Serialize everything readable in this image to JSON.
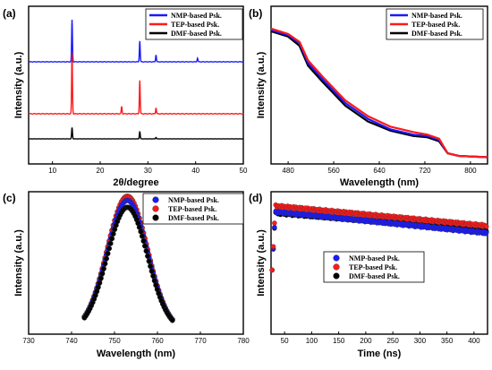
{
  "colors": {
    "nmp": "#1a1aff",
    "tep": "#ff1a1a",
    "dmf": "#000000"
  },
  "chart_data": [
    {
      "id": "a",
      "type": "line",
      "panel_label": "(a)",
      "xlabel": "2θ/degree",
      "ylabel": "Intensity (a.u.)",
      "xlim": [
        5,
        50
      ],
      "xticks": [
        10,
        20,
        30,
        40,
        50
      ],
      "legend": "top-right",
      "series": [
        {
          "name": "NMP-based Psk.",
          "peaks": [
            [
              14.1,
              0.9
            ],
            [
              28.3,
              0.45
            ],
            [
              31.7,
              0.15
            ],
            [
              40.4,
              0.08
            ]
          ]
        },
        {
          "name": "TEP-based Psk.",
          "peaks": [
            [
              14.1,
              1.0
            ],
            [
              28.3,
              0.55
            ],
            [
              24.5,
              0.12
            ],
            [
              31.7,
              0.1
            ]
          ]
        },
        {
          "name": "DMF-based Psk.",
          "peaks": [
            [
              14.1,
              0.45
            ],
            [
              28.3,
              0.3
            ],
            [
              31.7,
              0.06
            ]
          ]
        }
      ]
    },
    {
      "id": "b",
      "type": "line",
      "panel_label": "(b)",
      "xlabel": "Wavelength (nm)",
      "ylabel": "Intensity (a.u.)",
      "xlim": [
        450,
        830
      ],
      "xticks": [
        480,
        560,
        640,
        720,
        800
      ],
      "legend": "top-right",
      "series": [
        {
          "name": "NMP-based Psk.",
          "x": [
            450,
            480,
            500,
            515,
            540,
            580,
            620,
            660,
            700,
            725,
            745,
            760,
            780,
            830
          ],
          "y": [
            0.97,
            0.93,
            0.87,
            0.72,
            0.6,
            0.42,
            0.3,
            0.22,
            0.18,
            0.17,
            0.14,
            0.04,
            0.02,
            0.01
          ]
        },
        {
          "name": "TEP-based Psk.",
          "x": [
            450,
            480,
            500,
            515,
            540,
            580,
            620,
            660,
            700,
            725,
            745,
            760,
            780,
            830
          ],
          "y": [
            0.98,
            0.94,
            0.88,
            0.74,
            0.62,
            0.44,
            0.32,
            0.24,
            0.2,
            0.18,
            0.15,
            0.04,
            0.02,
            0.01
          ]
        },
        {
          "name": "DMF-based Psk.",
          "x": [
            450,
            480,
            500,
            515,
            540,
            580,
            620,
            660,
            700,
            725,
            745,
            760,
            780,
            830
          ],
          "y": [
            0.96,
            0.92,
            0.85,
            0.7,
            0.58,
            0.4,
            0.28,
            0.21,
            0.17,
            0.16,
            0.13,
            0.04,
            0.02,
            0.01
          ]
        }
      ]
    },
    {
      "id": "c",
      "type": "scatter",
      "panel_label": "(c)",
      "xlabel": "Wavelength (nm)",
      "ylabel": "Intensity (a.u.)",
      "xlim": [
        730,
        780
      ],
      "xticks": [
        730,
        740,
        750,
        760,
        770,
        780
      ],
      "legend": "top-right",
      "peak_center_nm": 753,
      "peak_sigma_nm": 4.7,
      "series": [
        {
          "name": "NMP-based Psk.",
          "amplitude": 0.95
        },
        {
          "name": "TEP-based Psk.",
          "amplitude": 0.98
        },
        {
          "name": "DMF-based Psk.",
          "amplitude": 0.9
        }
      ]
    },
    {
      "id": "d",
      "type": "scatter",
      "panel_label": "(d)",
      "xlabel": "Time (ns)",
      "ylabel": "Intensity (a.u.)",
      "xlim": [
        25,
        425
      ],
      "xticks": [
        50,
        100,
        150,
        200,
        250,
        300,
        350,
        400
      ],
      "legend": "center",
      "series": [
        {
          "name": "NMP-based Psk.",
          "start": 0.86,
          "end": 0.71
        },
        {
          "name": "TEP-based Psk.",
          "start": 0.9,
          "end": 0.76
        },
        {
          "name": "DMF-based Psk.",
          "start": 0.85,
          "end": 0.73
        }
      ]
    }
  ]
}
